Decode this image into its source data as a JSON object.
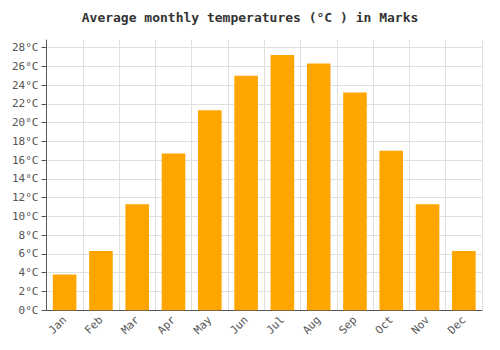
{
  "chart_data": {
    "type": "bar",
    "title": "Average monthly temperatures (°C ) in Marks",
    "categories": [
      "Jan",
      "Feb",
      "Mar",
      "Apr",
      "May",
      "Jun",
      "Jul",
      "Aug",
      "Sep",
      "Oct",
      "Nov",
      "Dec"
    ],
    "values": [
      3.8,
      6.3,
      11.3,
      16.7,
      21.3,
      25.0,
      27.2,
      26.3,
      23.2,
      17.0,
      11.3,
      6.3
    ],
    "color": "#FFA500",
    "ylim": [
      0,
      28.8
    ],
    "yticks": [
      {
        "value": 0,
        "label": "0°C"
      },
      {
        "value": 2,
        "label": "2°C"
      },
      {
        "value": 4,
        "label": "4°C"
      },
      {
        "value": 6,
        "label": "6°C"
      },
      {
        "value": 8,
        "label": "8°C"
      },
      {
        "value": 10,
        "label": "10°C"
      },
      {
        "value": 12,
        "label": "12°C"
      },
      {
        "value": 14,
        "label": "14°C"
      },
      {
        "value": 16,
        "label": "16°C"
      },
      {
        "value": 18,
        "label": "18°C"
      },
      {
        "value": 20,
        "label": "20°C"
      },
      {
        "value": 22,
        "label": "22°C"
      },
      {
        "value": 24,
        "label": "24°C"
      },
      {
        "value": 26,
        "label": "26°C"
      },
      {
        "value": 28,
        "label": "28°C"
      }
    ],
    "grid": true
  }
}
